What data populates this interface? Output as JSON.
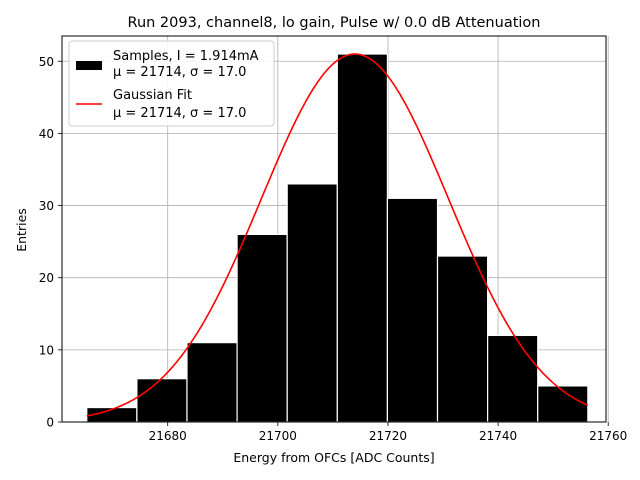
{
  "chart_data": {
    "type": "bar",
    "title": "Run 2093, channel8, lo gain, Pulse w/ 0.0 dB Attenuation",
    "xlabel": "Energy from OFCs [ADC Counts]",
    "ylabel": "Entries",
    "xlim": [
      21660.8,
      21759.6
    ],
    "ylim": [
      0,
      53.5
    ],
    "x_ticks": [
      21680,
      21700,
      21720,
      21740,
      21760
    ],
    "y_ticks": [
      0,
      10,
      20,
      30,
      40,
      50
    ],
    "grid": true,
    "legend_position": "top-left",
    "histogram": {
      "name": "Samples, I = 1.914mA",
      "stats_label": "μ = 21714, σ = 17.0",
      "color": "#000000",
      "bins": [
        {
          "x0": 21665.3,
          "x1": 21674.4,
          "count": 2
        },
        {
          "x0": 21674.4,
          "x1": 21683.5,
          "count": 6
        },
        {
          "x0": 21683.5,
          "x1": 21692.6,
          "count": 11
        },
        {
          "x0": 21692.6,
          "x1": 21701.7,
          "count": 26
        },
        {
          "x0": 21701.7,
          "x1": 21710.8,
          "count": 33
        },
        {
          "x0": 21710.8,
          "x1": 21719.9,
          "count": 51
        },
        {
          "x0": 21719.9,
          "x1": 21729.0,
          "count": 31
        },
        {
          "x0": 21729.0,
          "x1": 21738.1,
          "count": 23
        },
        {
          "x0": 21738.1,
          "x1": 21747.2,
          "count": 12
        },
        {
          "x0": 21747.2,
          "x1": 21756.3,
          "count": 5
        }
      ]
    },
    "fit": {
      "name": "Gaussian Fit",
      "stats_label": "μ = 21714, σ = 17.0",
      "color": "#ff0000",
      "mu": 21714,
      "sigma": 17.0,
      "amplitude": 51,
      "x_range": [
        21665.3,
        21756.3
      ]
    }
  }
}
